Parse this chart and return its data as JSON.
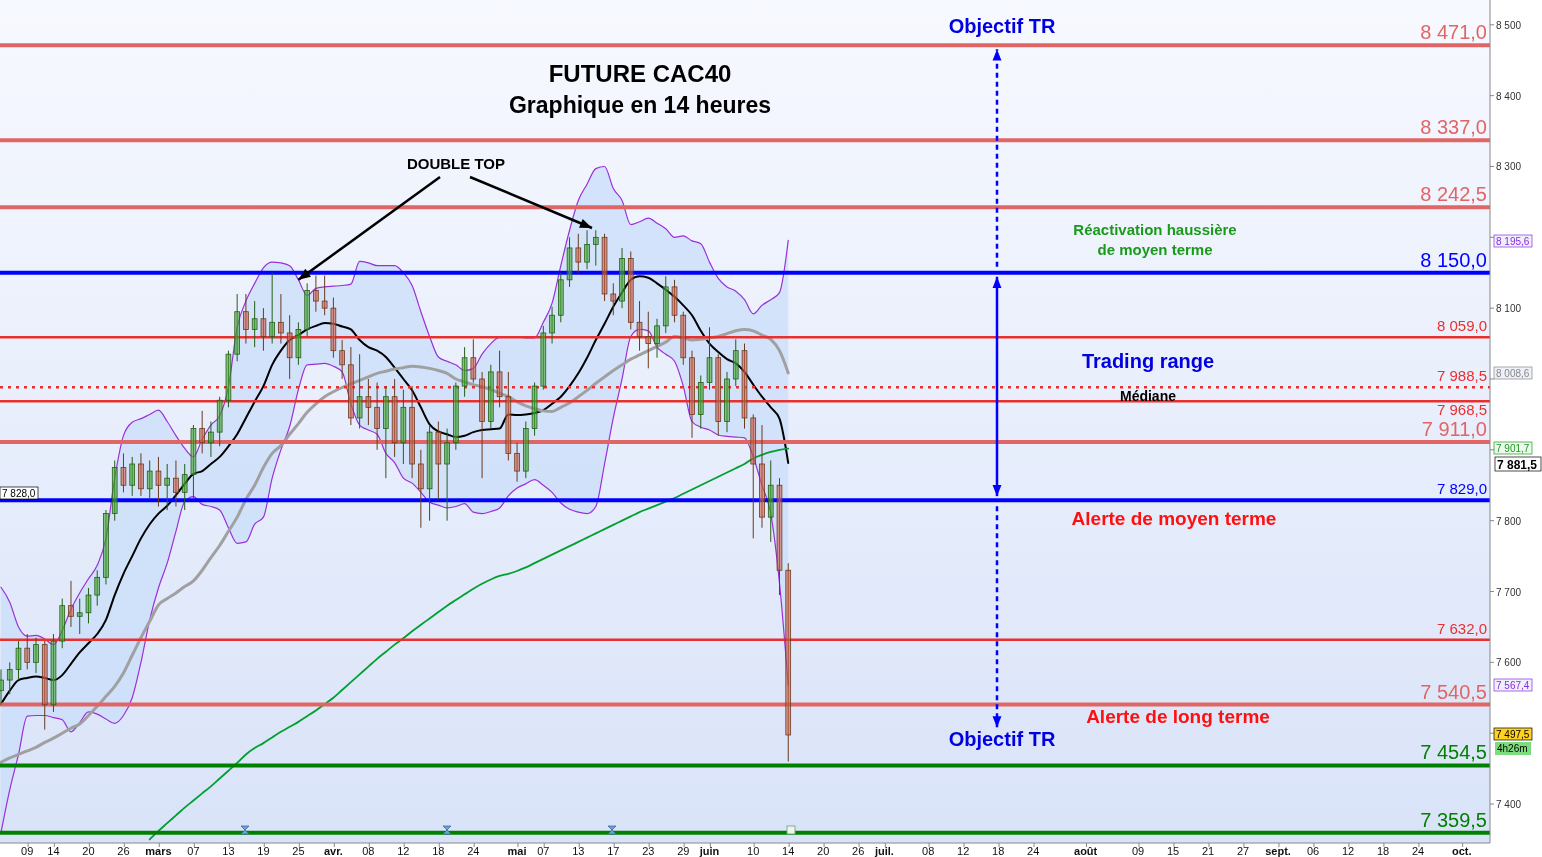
{
  "chart_data": {
    "type": "candlestick",
    "title": "FUTURE CAC40",
    "subtitle": "Graphique en 14 heures",
    "categories": [
      null,
      null,
      null,
      "09",
      null,
      null,
      "14",
      null,
      null,
      null,
      "20",
      null,
      null,
      null,
      "26",
      null,
      null,
      null,
      "mars",
      null,
      null,
      null,
      "07",
      null,
      null,
      null,
      "13",
      null,
      null,
      null,
      "19",
      null,
      null,
      null,
      "25",
      null,
      null,
      null,
      "avr.",
      null,
      null,
      null,
      "08",
      null,
      null,
      null,
      "12",
      null,
      null,
      null,
      "18",
      null,
      null,
      null,
      "24",
      null,
      null,
      null,
      null,
      "mai",
      null,
      null,
      "07",
      null,
      null,
      null,
      "13",
      null,
      null,
      null,
      "17",
      null,
      null,
      null,
      "23",
      null,
      null,
      null,
      "29",
      null,
      null,
      "juin",
      null,
      null,
      null,
      null,
      "10",
      null,
      null,
      null,
      "14",
      null,
      null,
      null,
      "20",
      null,
      null,
      null,
      "26",
      null,
      null,
      "juil.",
      null,
      null,
      null,
      null,
      "08",
      null,
      null,
      null,
      "12",
      null,
      null,
      null,
      "18",
      null,
      null,
      null,
      "24",
      null,
      null,
      null,
      null,
      null,
      "août",
      null,
      null,
      null,
      null,
      null,
      "09",
      null,
      null,
      null,
      "15",
      null,
      null,
      null,
      "21",
      null,
      null,
      null,
      "27",
      null,
      null,
      null,
      "sept.",
      null,
      null,
      null,
      "06",
      null,
      null,
      null,
      "12",
      null,
      null,
      null,
      "18",
      null,
      null,
      null,
      "24",
      null,
      null,
      null,
      null,
      "oct.",
      null,
      null,
      null
    ],
    "ohlc": [
      [
        7560,
        7590,
        7540,
        7575
      ],
      [
        7575,
        7600,
        7555,
        7590
      ],
      [
        7590,
        7630,
        7575,
        7620
      ],
      [
        7620,
        7640,
        7590,
        7600
      ],
      [
        7600,
        7635,
        7585,
        7625
      ],
      [
        7625,
        7630,
        7505,
        7540
      ],
      [
        7540,
        7640,
        7530,
        7630
      ],
      [
        7630,
        7690,
        7620,
        7680
      ],
      [
        7680,
        7715,
        7650,
        7665
      ],
      [
        7665,
        7690,
        7640,
        7670
      ],
      [
        7670,
        7705,
        7655,
        7695
      ],
      [
        7695,
        7730,
        7680,
        7720
      ],
      [
        7720,
        7815,
        7710,
        7810
      ],
      [
        7810,
        7885,
        7800,
        7875
      ],
      [
        7875,
        7895,
        7840,
        7850
      ],
      [
        7850,
        7890,
        7835,
        7880
      ],
      [
        7880,
        7895,
        7835,
        7845
      ],
      [
        7845,
        7885,
        7830,
        7870
      ],
      [
        7870,
        7890,
        7820,
        7850
      ],
      [
        7850,
        7880,
        7815,
        7860
      ],
      [
        7860,
        7885,
        7820,
        7840
      ],
      [
        7840,
        7880,
        7815,
        7865
      ],
      [
        7865,
        7935,
        7830,
        7930
      ],
      [
        7930,
        7955,
        7895,
        7910
      ],
      [
        7910,
        7940,
        7890,
        7925
      ],
      [
        7925,
        7975,
        7905,
        7970
      ],
      [
        7970,
        8040,
        7960,
        8035
      ],
      [
        8035,
        8120,
        8025,
        8095
      ],
      [
        8095,
        8120,
        8050,
        8070
      ],
      [
        8070,
        8110,
        8045,
        8085
      ],
      [
        8085,
        8100,
        8040,
        8060
      ],
      [
        8060,
        8150,
        8050,
        8080
      ],
      [
        8080,
        8120,
        8050,
        8065
      ],
      [
        8065,
        8090,
        8000,
        8030
      ],
      [
        8030,
        8080,
        8020,
        8070
      ],
      [
        8070,
        8135,
        8060,
        8125
      ],
      [
        8125,
        8146,
        8095,
        8110
      ],
      [
        8110,
        8146,
        8090,
        8100
      ],
      [
        8100,
        8115,
        8030,
        8040
      ],
      [
        8040,
        8055,
        8000,
        8020
      ],
      [
        8020,
        8045,
        7935,
        7945
      ],
      [
        7945,
        8035,
        7930,
        7975
      ],
      [
        7975,
        8000,
        7935,
        7960
      ],
      [
        7960,
        7995,
        7900,
        7930
      ],
      [
        7930,
        7990,
        7860,
        7975
      ],
      [
        7975,
        8000,
        7890,
        7910
      ],
      [
        7910,
        7985,
        7880,
        7960
      ],
      [
        7960,
        7990,
        7860,
        7880
      ],
      [
        7880,
        7900,
        7790,
        7845
      ],
      [
        7845,
        7935,
        7800,
        7925
      ],
      [
        7925,
        7940,
        7830,
        7880
      ],
      [
        7880,
        7930,
        7800,
        7910
      ],
      [
        7910,
        7995,
        7900,
        7990
      ],
      [
        7990,
        8045,
        7975,
        8030
      ],
      [
        8030,
        8056,
        7995,
        8000
      ],
      [
        8000,
        8010,
        7860,
        7940
      ],
      [
        7940,
        8020,
        7930,
        8010
      ],
      [
        8010,
        8040,
        7960,
        7975
      ],
      [
        7975,
        8010,
        7885,
        7895
      ],
      [
        7895,
        7910,
        7855,
        7870
      ],
      [
        7870,
        7940,
        7860,
        7930
      ],
      [
        7930,
        7995,
        7920,
        7990
      ],
      [
        7990,
        8075,
        7985,
        8065
      ],
      [
        8065,
        8102,
        8050,
        8090
      ],
      [
        8090,
        8150,
        8080,
        8140
      ],
      [
        8140,
        8200,
        8130,
        8185
      ],
      [
        8185,
        8205,
        8150,
        8165
      ],
      [
        8165,
        8210,
        8155,
        8190
      ],
      [
        8190,
        8210,
        8160,
        8200
      ],
      [
        8200,
        8205,
        8110,
        8120
      ],
      [
        8120,
        8135,
        8090,
        8110
      ],
      [
        8110,
        8185,
        8100,
        8170
      ],
      [
        8170,
        8180,
        8070,
        8080
      ],
      [
        8080,
        8110,
        8040,
        8060
      ],
      [
        8060,
        8095,
        8015,
        8050
      ],
      [
        8050,
        8085,
        8030,
        8075
      ],
      [
        8075,
        8145,
        8065,
        8130
      ],
      [
        8130,
        8140,
        8080,
        8090
      ],
      [
        8090,
        8095,
        8020,
        8030
      ],
      [
        8030,
        8040,
        7917,
        7950
      ],
      [
        7950,
        8005,
        7930,
        7995
      ],
      [
        7995,
        8073,
        7985,
        8030
      ],
      [
        8030,
        8035,
        7920,
        7940
      ],
      [
        7940,
        8010,
        7925,
        8000
      ],
      [
        8000,
        8056,
        7990,
        8040
      ],
      [
        8040,
        8050,
        7930,
        7945
      ],
      [
        7945,
        7950,
        7775,
        7880
      ],
      [
        7880,
        7935,
        7790,
        7805
      ],
      [
        7805,
        7885,
        7770,
        7850
      ],
      [
        7850,
        7860,
        7695,
        7730
      ],
      [
        7730,
        7740,
        7460,
        7497.5
      ],
      null,
      null,
      null,
      null,
      null,
      null,
      null,
      null,
      null,
      null,
      null,
      null,
      null,
      null,
      null,
      null,
      null,
      null,
      null,
      null,
      null,
      null,
      null,
      null,
      null,
      null,
      null,
      null,
      null,
      null,
      null,
      null,
      null,
      null,
      null,
      null,
      null,
      null,
      null,
      null,
      null,
      null,
      null,
      null,
      null,
      null,
      null,
      null,
      null,
      null,
      null,
      null,
      null,
      null,
      null,
      null,
      null,
      null,
      null,
      null,
      null,
      null,
      null,
      null,
      null,
      null,
      null,
      null,
      null,
      null,
      null,
      null,
      null,
      null,
      null,
      null,
      null,
      null,
      null,
      null
    ],
    "series": [
      {
        "type": "line",
        "color": "#000000",
        "values": [
          7541,
          7560,
          7575,
          7578,
          7580,
          7578,
          7575,
          7582,
          7598,
          7614,
          7627,
          7640,
          7660,
          7695,
          7725,
          7750,
          7775,
          7795,
          7810,
          7821,
          7836,
          7852,
          7866,
          7870,
          7880,
          7890,
          7905,
          7922,
          7945,
          7968,
          7990,
          8020,
          8040,
          8055,
          8062,
          8070,
          8075,
          8079,
          8078,
          8074,
          8070,
          8055,
          8045,
          8040,
          8031,
          8016,
          8000,
          7984,
          7960,
          7936,
          7926,
          7922,
          7918,
          7920,
          7925,
          7928,
          7929,
          7930,
          7950,
          7949,
          7950,
          7952,
          7956,
          7965,
          7975,
          7990,
          8008,
          8030,
          8055,
          8078,
          8102,
          8122,
          8140,
          8145,
          8143,
          8135,
          8126,
          8116,
          8104,
          8090,
          8068,
          8050,
          8038,
          8028,
          8022,
          8010,
          7992,
          7975,
          7960,
          7944,
          7881.5,
          null,
          null,
          null,
          null,
          null,
          null,
          null,
          null,
          null,
          null,
          null,
          null,
          null,
          null,
          null,
          null,
          null,
          null,
          null,
          null,
          null,
          null,
          null,
          null,
          null,
          null,
          null,
          null,
          null,
          null,
          null,
          null,
          null,
          null,
          null,
          null,
          null,
          null,
          null,
          null,
          null,
          null,
          null,
          null,
          null,
          null,
          null,
          null,
          null,
          null,
          null,
          null,
          null,
          null,
          null,
          null,
          null,
          null,
          null,
          null,
          null,
          null,
          null,
          null,
          null,
          null,
          null,
          null,
          null,
          null,
          null,
          null,
          null,
          null,
          null,
          null,
          null,
          null,
          null,
          null
        ],
        "upper": [
          7706,
          7685,
          7650,
          7637,
          7638,
          7633,
          7625,
          7645,
          7675,
          7698,
          7718,
          7737,
          7775,
          7860,
          7920,
          7939,
          7944,
          7950,
          7956,
          7940,
          7920,
          7902,
          7890,
          7915,
          7935,
          7948,
          7989,
          8073,
          8110,
          8135,
          8157,
          8165,
          8164,
          8160,
          8140,
          8118,
          8128,
          8130,
          8131,
          8132,
          8134,
          8166,
          8164,
          8160,
          8160,
          8160,
          8150,
          8132,
          8095,
          8060,
          8031,
          8025,
          8020,
          8012,
          8015,
          8035,
          8050,
          8059,
          8060,
          8060,
          8058,
          8058,
          8080,
          8107,
          8160,
          8210,
          8252,
          8275,
          8297,
          8300,
          8269,
          8252,
          8218,
          8222,
          8227,
          8220,
          8212,
          8200,
          8202,
          8195,
          8191,
          8165,
          8142,
          8130,
          8124,
          8112,
          8092,
          8104,
          8112,
          8122,
          8195.6,
          null,
          null,
          null,
          null,
          null,
          null,
          null,
          null,
          null,
          null,
          null,
          null,
          null,
          null,
          null,
          null,
          null,
          null,
          null,
          null,
          null,
          null,
          null,
          null,
          null,
          null,
          null,
          null,
          null,
          null,
          null,
          null,
          null,
          null,
          null,
          null,
          null,
          null,
          null,
          null,
          null,
          null,
          null,
          null,
          null,
          null,
          null,
          null,
          null,
          null,
          null,
          null,
          null,
          null,
          null,
          null,
          null,
          null,
          null,
          null,
          null,
          null,
          null,
          null,
          null,
          null,
          null,
          null,
          null,
          null,
          null,
          null,
          null,
          null,
          null,
          null,
          null,
          null,
          null,
          null
        ],
        "lower": [
          7360,
          7420,
          7470,
          7524,
          7525,
          7525,
          7522,
          7519,
          7502,
          7515,
          7530,
          7527,
          7520,
          7514,
          7525,
          7550,
          7600,
          7660,
          7705,
          7740,
          7785,
          7827,
          7834,
          7823,
          7820,
          7815,
          7790,
          7768,
          7770,
          7795,
          7805,
          7860,
          7900,
          7933,
          7985,
          8020,
          8021,
          8022,
          8018,
          8010,
          7965,
          7935,
          7928,
          7922,
          7895,
          7882,
          7860,
          7853,
          7840,
          7826,
          7822,
          7818,
          7820,
          7824,
          7812,
          7810,
          7813,
          7818,
          7835,
          7846,
          7852,
          7858,
          7850,
          7840,
          7825,
          7816,
          7812,
          7810,
          7820,
          7880,
          7945,
          8000,
          8060,
          8070,
          8068,
          8045,
          8035,
          8025,
          7990,
          7940,
          7932,
          7928,
          7921,
          7919,
          7918,
          7917,
          7890,
          7850,
          7810,
          7712,
          7567.4,
          null,
          null,
          null,
          null,
          null,
          null,
          null,
          null,
          null,
          null,
          null,
          null,
          null,
          null,
          null,
          null,
          null,
          null,
          null,
          null,
          null,
          null,
          null,
          null,
          null,
          null,
          null,
          null,
          null,
          null,
          null,
          null,
          null,
          null,
          null,
          null,
          null,
          null,
          null,
          null,
          null,
          null,
          null,
          null,
          null,
          null,
          null,
          null,
          null,
          null,
          null,
          null,
          null,
          null,
          null,
          null,
          null,
          null,
          null,
          null,
          null,
          null,
          null,
          null,
          null,
          null,
          null,
          null,
          null,
          null,
          null,
          null,
          null,
          null,
          null,
          null,
          null,
          null,
          null,
          null
        ]
      },
      {
        "type": "line",
        "color": "#9b30d9",
        "values": [
          7706,
          7685,
          7650,
          7637,
          7638,
          7633,
          7625,
          7645,
          7675,
          7698,
          7718,
          7737,
          7775,
          7860,
          7920,
          7939,
          7944,
          7950,
          7956,
          7940,
          7920,
          7902,
          7890,
          7915,
          7935,
          7948,
          7989,
          8073,
          8110,
          8135,
          8157,
          8165,
          8164,
          8160,
          8140,
          8118,
          8128,
          8130,
          8131,
          8132,
          8134,
          8166,
          8164,
          8160,
          8160,
          8160,
          8150,
          8132,
          8095,
          8060,
          8031,
          8025,
          8020,
          8012,
          8015,
          8035,
          8050,
          8059,
          8060,
          8060,
          8058,
          8058,
          8080,
          8107,
          8160,
          8210,
          8252,
          8275,
          8297,
          8300,
          8269,
          8252,
          8218,
          8222,
          8227,
          8220,
          8212,
          8200,
          8202,
          8195,
          8191,
          8165,
          8142,
          8130,
          8124,
          8112,
          8092,
          8104,
          8112,
          8122,
          8195.6,
          null,
          null,
          null,
          null,
          null,
          null,
          null,
          null,
          null,
          null,
          null,
          null,
          null,
          null,
          null,
          null,
          null,
          null,
          null,
          null,
          null,
          null,
          null,
          null,
          null,
          null,
          null,
          null,
          null,
          null,
          null,
          null,
          null,
          null,
          null,
          null,
          null,
          null,
          null,
          null,
          null,
          null,
          null,
          null,
          null,
          null,
          null,
          null,
          null,
          null,
          null,
          null,
          null,
          null,
          null,
          null,
          null,
          null,
          null,
          null,
          null,
          null,
          null,
          null,
          null,
          null,
          null,
          null,
          null,
          null,
          null,
          null,
          null,
          null,
          null,
          null,
          null,
          null,
          null,
          null
        ]
      },
      {
        "type": "line",
        "color": "#9b30d9",
        "values": [
          7360,
          7420,
          7470,
          7524,
          7525,
          7525,
          7522,
          7519,
          7502,
          7515,
          7530,
          7527,
          7520,
          7514,
          7525,
          7550,
          7600,
          7660,
          7705,
          7740,
          7785,
          7827,
          7834,
          7823,
          7820,
          7815,
          7790,
          7768,
          7770,
          7795,
          7805,
          7860,
          7900,
          7933,
          7985,
          8020,
          8021,
          8022,
          8018,
          8010,
          7965,
          7935,
          7928,
          7922,
          7895,
          7882,
          7860,
          7853,
          7840,
          7826,
          7822,
          7818,
          7820,
          7824,
          7812,
          7810,
          7813,
          7818,
          7835,
          7846,
          7852,
          7858,
          7850,
          7840,
          7825,
          7816,
          7812,
          7810,
          7820,
          7880,
          7945,
          8000,
          8060,
          8070,
          8068,
          8045,
          8035,
          8025,
          7990,
          7940,
          7932,
          7928,
          7921,
          7919,
          7918,
          7917,
          7890,
          7850,
          7810,
          7712,
          7567.4,
          null,
          null,
          null,
          null,
          null,
          null,
          null,
          null,
          null,
          null,
          null,
          null,
          null,
          null,
          null,
          null,
          null,
          null,
          null,
          null,
          null,
          null,
          null,
          null,
          null,
          null,
          null,
          null,
          null,
          null,
          null,
          null,
          null,
          null,
          null,
          null,
          null,
          null,
          null,
          null,
          null,
          null,
          null,
          null,
          null,
          null,
          null,
          null,
          null,
          null,
          null,
          null,
          null,
          null,
          null,
          null,
          null,
          null,
          null,
          null,
          null,
          null,
          null,
          null,
          null,
          null,
          null,
          null,
          null,
          null,
          null,
          null,
          null,
          null,
          null,
          null,
          null,
          null,
          null,
          null
        ]
      },
      {
        "type": "line",
        "color": "#a0a0a0",
        "values": [
          7459,
          7465,
          7470,
          7475,
          7480,
          7487,
          7493,
          7500,
          7507,
          7513,
          7525,
          7538,
          7552,
          7566,
          7585,
          7610,
          7635,
          7658,
          7681,
          7690,
          7698,
          7707,
          7715,
          7730,
          7748,
          7765,
          7785,
          7805,
          7830,
          7850,
          7875,
          7895,
          7906,
          7922,
          7937,
          7953,
          7965,
          7975,
          7982,
          7988,
          7993,
          7998,
          8003,
          8008,
          8011,
          8014,
          8016,
          8018,
          8017,
          8015,
          8012,
          8008,
          8000,
          7996,
          7992,
          7989,
          7985,
          7980,
          7975,
          7968,
          7962,
          7958,
          7955,
          7954,
          7960,
          7966,
          7975,
          7984,
          7994,
          8003,
          8012,
          8020,
          8028,
          8034,
          8040,
          8046,
          8052,
          8060,
          8058,
          8055,
          8056,
          8058,
          8060,
          8064,
          8068,
          8070,
          8068,
          8062,
          8056,
          8040,
          8008.6,
          null,
          null,
          null,
          null,
          null,
          null,
          null,
          null,
          null,
          null,
          null,
          null,
          null,
          null,
          null,
          null,
          null,
          null,
          null,
          null,
          null,
          null,
          null,
          null,
          null,
          null,
          null,
          null,
          null,
          null,
          null,
          null,
          null,
          null,
          null,
          null,
          null,
          null,
          null,
          null,
          null,
          null,
          null,
          null,
          null,
          null,
          null,
          null,
          null,
          null,
          null,
          null,
          null,
          null,
          null,
          null,
          null,
          null,
          null,
          null,
          null,
          null,
          null,
          null,
          null,
          null,
          null,
          null,
          null,
          null,
          null,
          null,
          null,
          null,
          null,
          null,
          null,
          null,
          null,
          null
        ]
      },
      {
        "type": "line",
        "color": "#00a030",
        "values": [
          null,
          null,
          null,
          null,
          null,
          null,
          null,
          null,
          null,
          null,
          null,
          null,
          null,
          null,
          null,
          null,
          null,
          7350,
          7362,
          7373,
          7384,
          7395,
          7405,
          7415,
          7425,
          7436,
          7447,
          7458,
          7470,
          7479,
          7486,
          7494,
          7502,
          7509,
          7516,
          7524,
          7532,
          7541,
          7550,
          7561,
          7572,
          7583,
          7594,
          7605,
          7615,
          7625,
          7634,
          7644,
          7653,
          7662,
          7671,
          7680,
          7688,
          7696,
          7704,
          7711,
          7717,
          7722,
          7725,
          7729,
          7734,
          7740,
          7746,
          7752,
          7758,
          7764,
          7770,
          7776,
          7782,
          7788,
          7794,
          7800,
          7806,
          7812,
          7817,
          7822,
          7827,
          7832,
          7838,
          7844,
          7850,
          7856,
          7862,
          7868,
          7874,
          7880,
          7888,
          7893,
          7897,
          7900,
          7901.7,
          null,
          null,
          null,
          null,
          null,
          null,
          null,
          null,
          null,
          null,
          null,
          null,
          null,
          null,
          null,
          null,
          null,
          null,
          null,
          null,
          null,
          null,
          null,
          null,
          null,
          null,
          null,
          null,
          null,
          null,
          null,
          null,
          null,
          null,
          null,
          null,
          null,
          null,
          null,
          null,
          null,
          null,
          null,
          null,
          null,
          null,
          null,
          null,
          null,
          null,
          null,
          null,
          null,
          null,
          null,
          null,
          null,
          null,
          null,
          null,
          null,
          null,
          null,
          null,
          null,
          null,
          null,
          null,
          null,
          null,
          null,
          null,
          null,
          null,
          null,
          null,
          null,
          null,
          null,
          null
        ]
      }
    ],
    "ylim": [
      7345,
      8535
    ],
    "yticks": [
      {
        "value": 7400,
        "label": "7 400"
      },
      {
        "value": 7500,
        "label": null
      },
      {
        "value": 7600,
        "label": "7 600"
      },
      {
        "value": 7700,
        "label": "7 700"
      },
      {
        "value": 7800,
        "label": "7 800"
      },
      {
        "value": 7900,
        "label": null
      },
      {
        "value": 8000,
        "label": null
      },
      {
        "value": 8100,
        "label": "8 100"
      },
      {
        "value": 8200,
        "label": null
      },
      {
        "value": 8300,
        "label": "8 300"
      },
      {
        "value": 8400,
        "label": "8 400"
      },
      {
        "value": 8500,
        "label": "8 500"
      }
    ],
    "ref_lines": [
      {
        "axis": "y",
        "value": 8471.0,
        "label": "8 471,0",
        "color": "#e06666"
      },
      {
        "axis": "y",
        "value": 8337.0,
        "label": "8 337,0",
        "color": "#e06666"
      },
      {
        "axis": "y",
        "value": 8242.5,
        "label": "8 242,5",
        "color": "#e06666"
      },
      {
        "axis": "y",
        "value": 8150.0,
        "label": "8 150,0",
        "color": "#0000ff"
      },
      {
        "axis": "y",
        "value": 8059.0,
        "label": "8 059,0",
        "color": "#e8302f"
      },
      {
        "axis": "y",
        "value": 7988.5,
        "label": "7 988,5",
        "color": "#e8302f",
        "line_style": "dotted"
      },
      {
        "axis": "y",
        "value": 7968.5,
        "label": "7 968,5",
        "color": "#e8302f"
      },
      {
        "axis": "y",
        "value": 7911.0,
        "label": "7 911,0",
        "color": "#e06666"
      },
      {
        "axis": "y",
        "value": 7829.0,
        "label": "7 829,0",
        "color": "#0000ff"
      },
      {
        "axis": "y",
        "value": 7632.0,
        "label": "7 632,0",
        "color": "#e8302f"
      },
      {
        "axis": "y",
        "value": 7540.5,
        "label": "7 540,5",
        "color": "#e06666"
      },
      {
        "axis": "y",
        "value": 7454.5,
        "label": "7 454,5",
        "color": "#008000"
      },
      {
        "axis": "y",
        "value": 7359.5,
        "label": "7 359,5",
        "color": "#008000"
      }
    ],
    "annotations": [
      {
        "text": "Objectif TR",
        "y": 8471
      },
      "Réactivation haussière\nde moyen terme",
      "Trading range",
      "Médiane",
      "Alerte de moyen terme",
      "Alerte de long terme",
      {
        "text": "Objectif TR",
        "y": 7454.5
      },
      {
        "text": "DOUBLE TOP",
        "x": "25",
        "y": 8140
      },
      "8 195,6",
      "8 008,6",
      "7 901,7",
      "7 881,5",
      "7 567,4",
      "7 497,5",
      "4h26m",
      "7 828,0"
    ]
  }
}
